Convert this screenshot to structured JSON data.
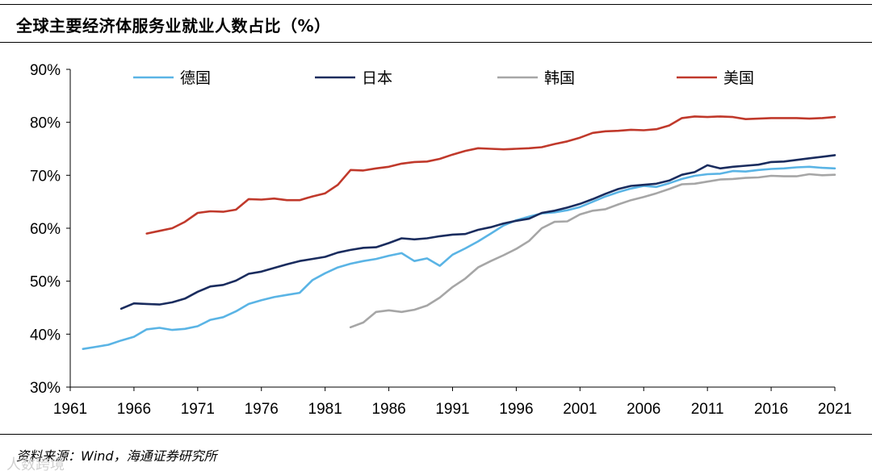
{
  "header": {
    "title": "全球主要经济体服务业就业人数占比（%）"
  },
  "footer": {
    "source": "资料来源：Wind，海通证券研究所"
  },
  "watermark": {
    "text": "人数跨境"
  },
  "chart_data": {
    "type": "line",
    "title": "全球主要经济体服务业就业人数占比（%）",
    "xlabel": "",
    "ylabel": "",
    "xlim": [
      1961,
      2021
    ],
    "ylim": [
      30,
      90
    ],
    "x_ticks": [
      1961,
      1966,
      1971,
      1976,
      1981,
      1986,
      1991,
      1996,
      2001,
      2006,
      2011,
      2016,
      2021
    ],
    "x_tick_labels": [
      "1961",
      "1966",
      "1971",
      "1976",
      "1981",
      "1986",
      "1991",
      "1996",
      "2001",
      "2006",
      "2011",
      "2016",
      "2021"
    ],
    "y_ticks": [
      30,
      40,
      50,
      60,
      70,
      80,
      90
    ],
    "y_tick_labels": [
      "30%",
      "40%",
      "50%",
      "60%",
      "70%",
      "80%",
      "90%"
    ],
    "grid": false,
    "legend_position": "top",
    "series": [
      {
        "name": "德国",
        "color": "#5ab4e5",
        "x": [
          1962,
          1963,
          1964,
          1965,
          1966,
          1967,
          1968,
          1969,
          1970,
          1971,
          1972,
          1973,
          1974,
          1975,
          1976,
          1977,
          1978,
          1979,
          1980,
          1981,
          1982,
          1983,
          1984,
          1985,
          1986,
          1987,
          1988,
          1989,
          1990,
          1991,
          1992,
          1993,
          1994,
          1995,
          1996,
          1997,
          1998,
          1999,
          2000,
          2001,
          2002,
          2003,
          2004,
          2005,
          2006,
          2007,
          2008,
          2009,
          2010,
          2011,
          2012,
          2013,
          2014,
          2015,
          2016,
          2017,
          2018,
          2019,
          2020,
          2021
        ],
        "y": [
          37.2,
          37.6,
          38.0,
          38.8,
          39.5,
          40.9,
          41.2,
          40.8,
          41.0,
          41.5,
          42.7,
          43.2,
          44.3,
          45.7,
          46.4,
          47.0,
          47.4,
          47.8,
          50.2,
          51.5,
          52.6,
          53.3,
          53.8,
          54.2,
          54.8,
          55.3,
          53.8,
          54.3,
          52.9,
          55.0,
          56.2,
          57.5,
          59.0,
          60.5,
          61.5,
          62.2,
          62.8,
          63.0,
          63.4,
          64.0,
          65.0,
          66.0,
          66.8,
          67.5,
          68.0,
          67.8,
          68.5,
          69.3,
          69.9,
          70.2,
          70.3,
          70.8,
          70.7,
          71.0,
          71.2,
          71.3,
          71.5,
          71.6,
          71.4,
          71.3
        ]
      },
      {
        "name": "日本",
        "color": "#1a2c5e",
        "x": [
          1965,
          1966,
          1967,
          1968,
          1969,
          1970,
          1971,
          1972,
          1973,
          1974,
          1975,
          1976,
          1977,
          1978,
          1979,
          1980,
          1981,
          1982,
          1983,
          1984,
          1985,
          1986,
          1987,
          1988,
          1989,
          1990,
          1991,
          1992,
          1993,
          1994,
          1995,
          1996,
          1997,
          1998,
          1999,
          2000,
          2001,
          2002,
          2003,
          2004,
          2005,
          2006,
          2007,
          2008,
          2009,
          2010,
          2011,
          2012,
          2013,
          2014,
          2015,
          2016,
          2017,
          2018,
          2019,
          2020,
          2021
        ],
        "y": [
          44.8,
          45.8,
          45.7,
          45.6,
          46.0,
          46.7,
          48.0,
          49.0,
          49.3,
          50.1,
          51.4,
          51.8,
          52.5,
          53.2,
          53.8,
          54.2,
          54.6,
          55.4,
          55.9,
          56.3,
          56.4,
          57.2,
          58.1,
          57.9,
          58.1,
          58.5,
          58.8,
          58.9,
          59.7,
          60.2,
          60.9,
          61.4,
          61.8,
          62.9,
          63.3,
          63.9,
          64.6,
          65.5,
          66.5,
          67.4,
          68.0,
          68.2,
          68.4,
          69.0,
          70.1,
          70.6,
          71.9,
          71.3,
          71.6,
          71.8,
          72.0,
          72.5,
          72.6,
          72.9,
          73.2,
          73.5,
          73.8
        ]
      },
      {
        "name": "韩国",
        "color": "#a6a6a6",
        "x": [
          1983,
          1984,
          1985,
          1986,
          1987,
          1988,
          1989,
          1990,
          1991,
          1992,
          1993,
          1994,
          1995,
          1996,
          1997,
          1998,
          1999,
          2000,
          2001,
          2002,
          2003,
          2004,
          2005,
          2006,
          2007,
          2008,
          2009,
          2010,
          2011,
          2012,
          2013,
          2014,
          2015,
          2016,
          2017,
          2018,
          2019,
          2020,
          2021
        ],
        "y": [
          41.3,
          42.2,
          44.2,
          44.5,
          44.2,
          44.6,
          45.4,
          46.9,
          48.9,
          50.5,
          52.6,
          53.8,
          54.9,
          56.1,
          57.6,
          60.0,
          61.2,
          61.3,
          62.6,
          63.3,
          63.6,
          64.5,
          65.3,
          65.9,
          66.6,
          67.4,
          68.3,
          68.4,
          68.8,
          69.2,
          69.3,
          69.5,
          69.6,
          69.9,
          69.8,
          69.8,
          70.2,
          70.0,
          70.1
        ]
      },
      {
        "name": "美国",
        "color": "#c0392b",
        "x": [
          1967,
          1968,
          1969,
          1970,
          1971,
          1972,
          1973,
          1974,
          1975,
          1976,
          1977,
          1978,
          1979,
          1980,
          1981,
          1982,
          1983,
          1984,
          1985,
          1986,
          1987,
          1988,
          1989,
          1990,
          1991,
          1992,
          1993,
          1994,
          1995,
          1996,
          1997,
          1998,
          1999,
          2000,
          2001,
          2002,
          2003,
          2004,
          2005,
          2006,
          2007,
          2008,
          2009,
          2010,
          2011,
          2012,
          2013,
          2014,
          2015,
          2016,
          2017,
          2018,
          2019,
          2020,
          2021
        ],
        "y": [
          59.0,
          59.5,
          60.0,
          61.2,
          62.9,
          63.2,
          63.1,
          63.5,
          65.5,
          65.4,
          65.6,
          65.3,
          65.3,
          66.0,
          66.6,
          68.2,
          71.0,
          70.9,
          71.3,
          71.6,
          72.2,
          72.5,
          72.6,
          73.1,
          73.9,
          74.6,
          75.1,
          75.0,
          74.9,
          75.0,
          75.1,
          75.3,
          75.9,
          76.4,
          77.1,
          78.0,
          78.3,
          78.4,
          78.6,
          78.5,
          78.7,
          79.4,
          80.8,
          81.1,
          81.0,
          81.1,
          81.0,
          80.6,
          80.7,
          80.8,
          80.8,
          80.8,
          80.7,
          80.8,
          81.0
        ]
      }
    ]
  }
}
